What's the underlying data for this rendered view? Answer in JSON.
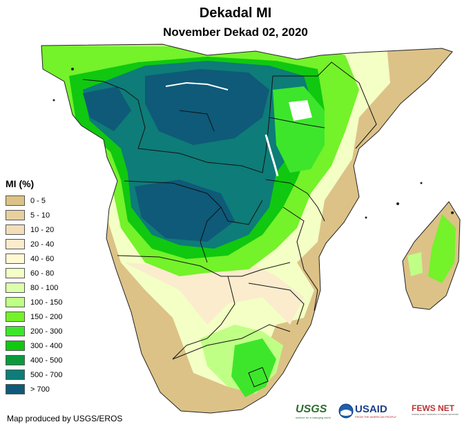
{
  "title": "Dekadal MI",
  "subtitle": "November Dekad 02, 2020",
  "legend": {
    "title": "MI (%)",
    "items": [
      {
        "label": "0 - 5",
        "color": "#dcc287"
      },
      {
        "label": "5 - 10",
        "color": "#e7d09f"
      },
      {
        "label": "10 - 20",
        "color": "#f2deb8"
      },
      {
        "label": "20 - 40",
        "color": "#faeccd"
      },
      {
        "label": "40 - 60",
        "color": "#fffad2"
      },
      {
        "label": "60 - 80",
        "color": "#f3ffc4"
      },
      {
        "label": "80 - 100",
        "color": "#dcffac"
      },
      {
        "label": "100 - 150",
        "color": "#c0ff86"
      },
      {
        "label": "150 - 200",
        "color": "#74f22a"
      },
      {
        "label": "200 - 300",
        "color": "#3de62b"
      },
      {
        "label": "300 - 400",
        "color": "#10c810"
      },
      {
        "label": "400 - 500",
        "color": "#0a9a3c"
      },
      {
        "label": "500 - 700",
        "color": "#0e7c78"
      },
      {
        "label": "> 700",
        "color": "#0e5a78"
      }
    ]
  },
  "credit": "Map produced by USGS/EROS",
  "logos": {
    "usgs": {
      "name": "USGS",
      "tagline": "science for a changing world"
    },
    "usaid": {
      "name": "USAID",
      "tagline": "FROM THE AMERICAN PEOPLE"
    },
    "fews": {
      "name": "FEWS NET",
      "tagline": "FAMINE EARLY WARNING SYSTEMS NETWORK"
    }
  }
}
